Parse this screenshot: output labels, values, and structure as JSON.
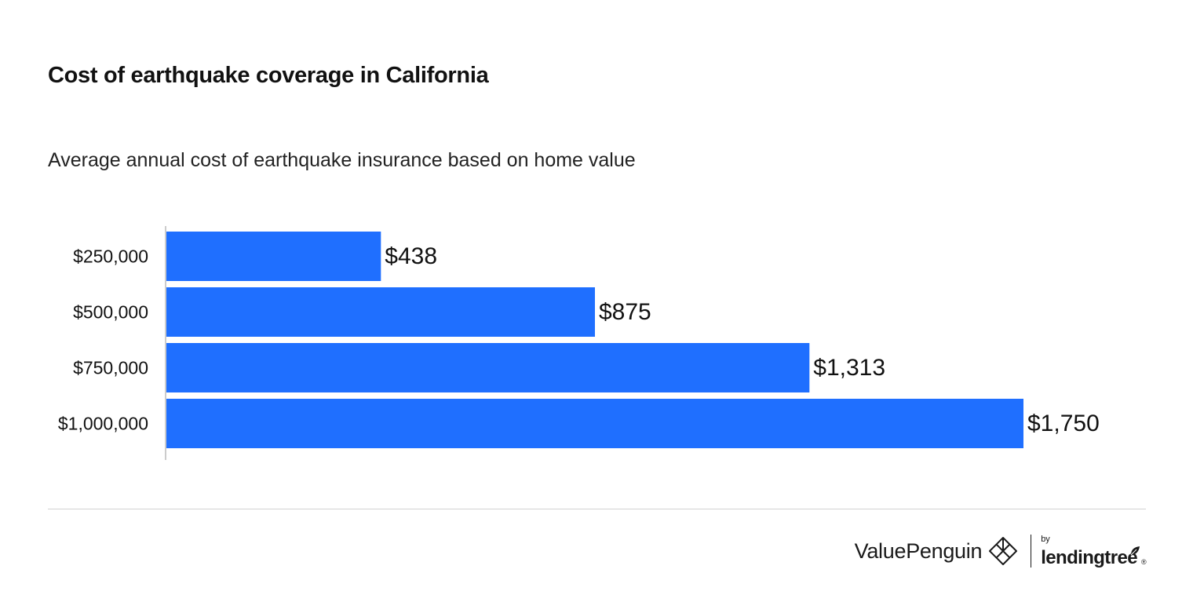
{
  "chart_data": {
    "type": "bar",
    "orientation": "horizontal",
    "title": "Cost of earthquake coverage in California",
    "subtitle": "Average annual cost of earthquake insurance based on home value",
    "categories": [
      "$250,000",
      "$500,000",
      "$750,000",
      "$1,000,000"
    ],
    "values": [
      438,
      875,
      1313,
      1750
    ],
    "value_labels": [
      "$438",
      "$875",
      "$1,313",
      "$1,750"
    ],
    "xlabel": "",
    "ylabel": "",
    "xlim": [
      0,
      1750
    ],
    "grid": false,
    "legend": "none",
    "bar_color": "#1f6fff"
  },
  "footer": {
    "brand": "ValuePenguin",
    "partner_prefix": "by",
    "partner": "lendingtree",
    "trademark": "®"
  },
  "colors": {
    "bar": "#1f6fff",
    "axis": "#cccccc",
    "text": "#111111",
    "rule": "#d2d2d2"
  }
}
